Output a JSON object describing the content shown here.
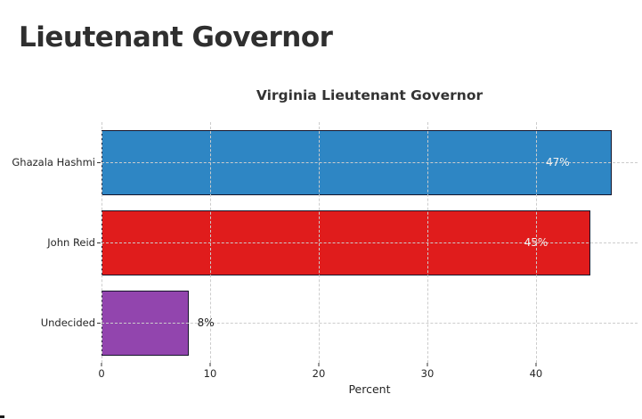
{
  "page": {
    "heading": "Lieutenant Governor",
    "background_color": "#ffffff",
    "heading_color": "#2f2f2f"
  },
  "chart_data": {
    "type": "bar",
    "orientation": "horizontal",
    "title": "Virginia Lieutenant Governor",
    "xlabel": "Percent",
    "ylabel": "",
    "categories": [
      "Ghazala Hashmi",
      "John Reid",
      "Undecided"
    ],
    "values": [
      47,
      45,
      8
    ],
    "value_labels": [
      "47%",
      "45%",
      "8%"
    ],
    "bar_colors": [
      "#2e86c4",
      "#e01c1c",
      "#9245ae"
    ],
    "bar_edge_color": "#15152b",
    "xticks": [
      0,
      10,
      20,
      30,
      40
    ],
    "xlim": [
      0,
      49.35
    ],
    "grid": true,
    "gridline_style": "dashed",
    "gridline_color": "#cccccc",
    "value_label_inside_color": "#f0f0f0",
    "value_label_outside_color": "#1b1b1b",
    "legend": "none"
  }
}
